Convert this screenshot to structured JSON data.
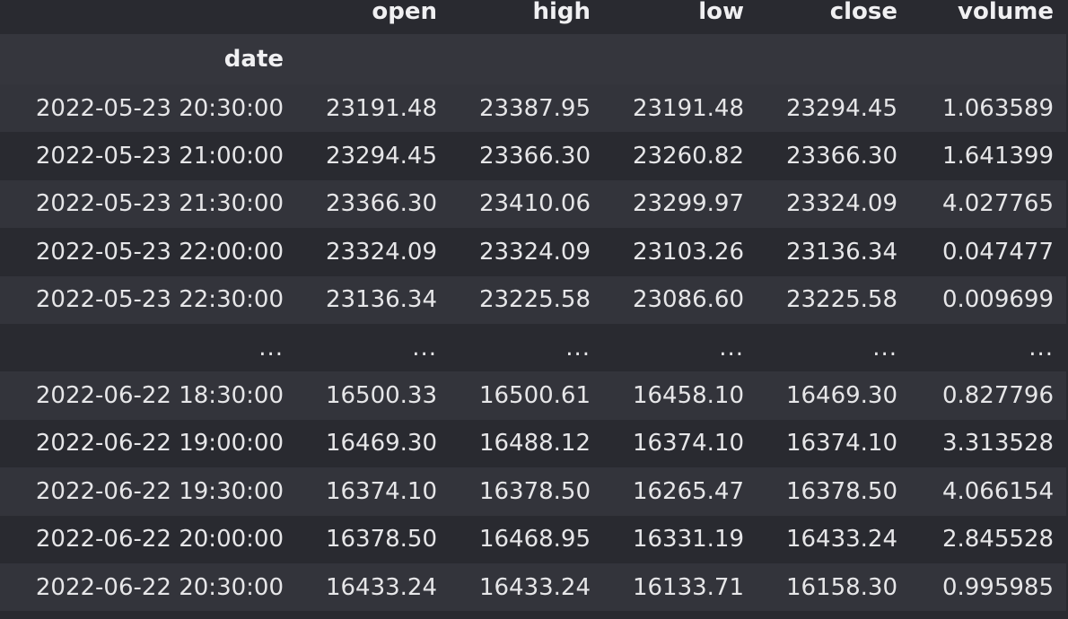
{
  "table": {
    "columns": [
      "open",
      "high",
      "low",
      "close",
      "volume"
    ],
    "index_name": "date",
    "rows": [
      {
        "index": "2022-05-23 20:30:00",
        "values": [
          "23191.48",
          "23387.95",
          "23191.48",
          "23294.45",
          "1.063589"
        ]
      },
      {
        "index": "2022-05-23 21:00:00",
        "values": [
          "23294.45",
          "23366.30",
          "23260.82",
          "23366.30",
          "1.641399"
        ]
      },
      {
        "index": "2022-05-23 21:30:00",
        "values": [
          "23366.30",
          "23410.06",
          "23299.97",
          "23324.09",
          "4.027765"
        ]
      },
      {
        "index": "2022-05-23 22:00:00",
        "values": [
          "23324.09",
          "23324.09",
          "23103.26",
          "23136.34",
          "0.047477"
        ]
      },
      {
        "index": "2022-05-23 22:30:00",
        "values": [
          "23136.34",
          "23225.58",
          "23086.60",
          "23225.58",
          "0.009699"
        ]
      },
      {
        "index": "...",
        "values": [
          "...",
          "...",
          "...",
          "...",
          "..."
        ]
      },
      {
        "index": "2022-06-22 18:30:00",
        "values": [
          "16500.33",
          "16500.61",
          "16458.10",
          "16469.30",
          "0.827796"
        ]
      },
      {
        "index": "2022-06-22 19:00:00",
        "values": [
          "16469.30",
          "16488.12",
          "16374.10",
          "16374.10",
          "3.313528"
        ]
      },
      {
        "index": "2022-06-22 19:30:00",
        "values": [
          "16374.10",
          "16378.50",
          "16265.47",
          "16378.50",
          "4.066154"
        ]
      },
      {
        "index": "2022-06-22 20:00:00",
        "values": [
          "16378.50",
          "16468.95",
          "16331.19",
          "16433.24",
          "2.845528"
        ]
      },
      {
        "index": "2022-06-22 20:30:00",
        "values": [
          "16433.24",
          "16433.24",
          "16133.71",
          "16158.30",
          "0.995985"
        ]
      }
    ]
  }
}
